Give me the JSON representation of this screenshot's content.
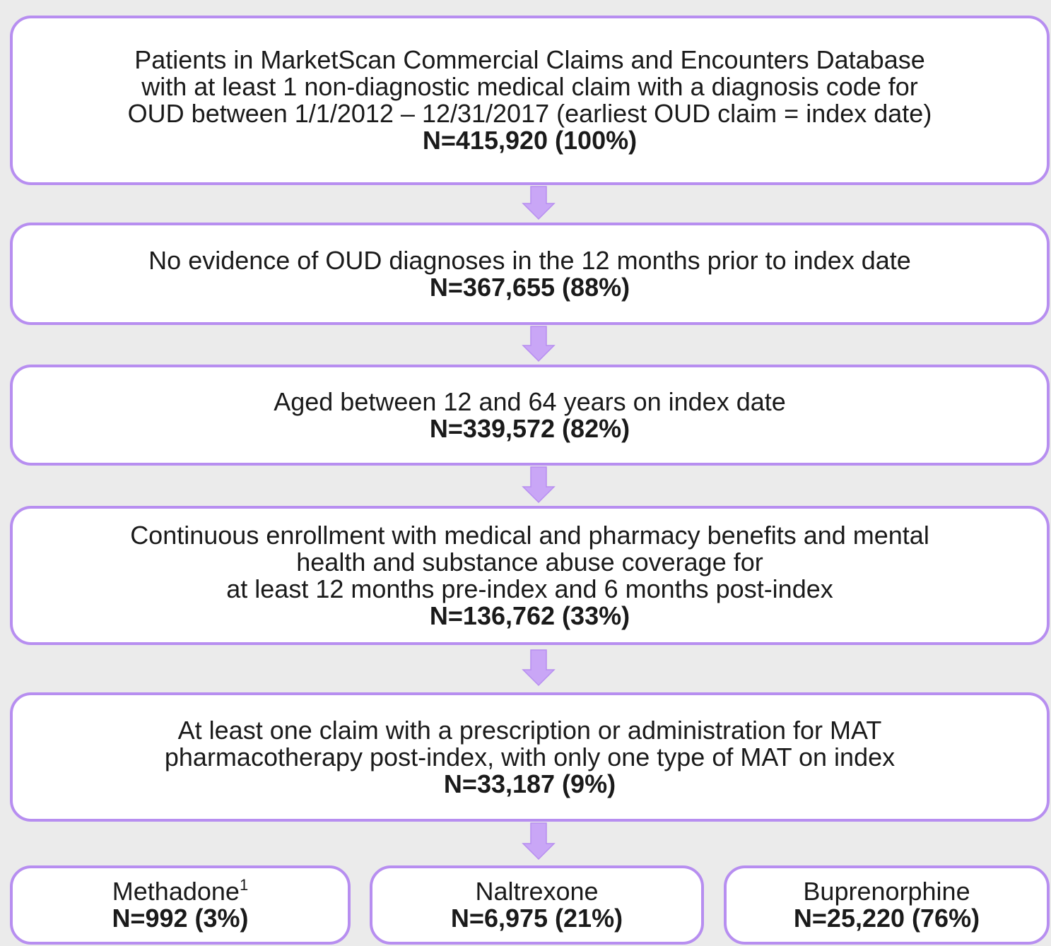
{
  "steps": [
    {
      "lines": [
        "Patients in MarketScan Commercial Claims and Encounters Database",
        "with at least 1 non-diagnostic medical claim with a diagnosis code for",
        "OUD between 1/1/2012 – 12/31/2017 (earliest OUD claim = index date)"
      ],
      "count": "N=415,920 (100%)"
    },
    {
      "lines": [
        "No evidence of OUD diagnoses in the 12 months prior to index date"
      ],
      "count": "N=367,655 (88%)"
    },
    {
      "lines": [
        "Aged between 12 and 64 years on index date"
      ],
      "count": "N=339,572 (82%)"
    },
    {
      "lines": [
        "Continuous enrollment with medical and pharmacy benefits and mental",
        "health and substance abuse coverage for",
        "at least 12 months pre-index and 6 months post-index"
      ],
      "count": "N=136,762 (33%)"
    },
    {
      "lines": [
        "At least one claim with a prescription or administration for MAT",
        "pharmacotherapy post-index, with only one type of MAT on index"
      ],
      "count": "N=33,187 (9%)"
    }
  ],
  "branches": [
    {
      "label": "Methadone",
      "note": "1",
      "count": "N=992 (3%)"
    },
    {
      "label": "Naltrexone",
      "count": "N=6,975 (21%)"
    },
    {
      "label": "Buprenorphine",
      "count": "N=25,220 (76%)"
    }
  ]
}
